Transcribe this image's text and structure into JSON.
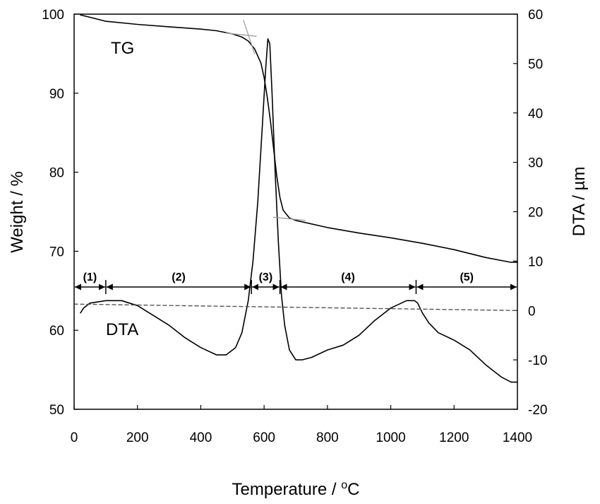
{
  "chart_data": {
    "type": "line",
    "xlabel": "Temperature",
    "xlabel_unit_prefix": " / ",
    "xlabel_unit_sup": "o",
    "xlabel_unit": "C",
    "ylabel_left": "Weight / %",
    "ylabel_right": "DTA / µm",
    "xlim": [
      0,
      1400
    ],
    "ylim_left": [
      50,
      100
    ],
    "ylim_right": [
      -20,
      60
    ],
    "x_ticks": [
      0,
      200,
      400,
      600,
      800,
      1000,
      1200,
      1400
    ],
    "y_left_ticks": [
      50,
      60,
      70,
      80,
      90,
      100
    ],
    "y_right_ticks": [
      -20,
      -10,
      0,
      10,
      20,
      30,
      40,
      50,
      60
    ],
    "grid": false,
    "annotations": {
      "tg_label": "TG",
      "dta_label": "DTA"
    },
    "regions": [
      {
        "label": "(1)",
        "start": 0,
        "end": 100
      },
      {
        "label": "(2)",
        "start": 100,
        "end": 560
      },
      {
        "label": "(3)",
        "start": 560,
        "end": 650
      },
      {
        "label": "(4)",
        "start": 650,
        "end": 1080
      },
      {
        "label": "(5)",
        "start": 1080,
        "end": 1400
      }
    ],
    "series": [
      {
        "name": "TG",
        "axis": "left",
        "x": [
          20,
          100,
          200,
          300,
          400,
          450,
          500,
          530,
          550,
          570,
          590,
          600,
          610,
          620,
          630,
          640,
          650,
          660,
          680,
          700,
          800,
          900,
          1000,
          1100,
          1200,
          1300,
          1380,
          1400
        ],
        "y": [
          99.9,
          99.1,
          98.7,
          98.4,
          98.1,
          97.9,
          97.5,
          97.1,
          96.6,
          95.6,
          93.8,
          92.0,
          89.5,
          86.5,
          83.0,
          79.5,
          76.8,
          75.2,
          74.2,
          73.9,
          73.0,
          72.3,
          71.7,
          71.0,
          70.2,
          69.2,
          68.6,
          68.6
        ]
      },
      {
        "name": "DTA",
        "axis": "right",
        "x": [
          20,
          30,
          50,
          100,
          150,
          200,
          250,
          300,
          350,
          400,
          450,
          480,
          510,
          530,
          550,
          565,
          580,
          595,
          605,
          612,
          618,
          625,
          635,
          645,
          655,
          665,
          680,
          700,
          720,
          750,
          800,
          850,
          900,
          950,
          1000,
          1050,
          1075,
          1085,
          1100,
          1120,
          1150,
          1200,
          1250,
          1300,
          1350,
          1380,
          1400
        ],
        "y": [
          -0.5,
          0.5,
          1.5,
          2.0,
          2.0,
          1.0,
          -1.0,
          -3.0,
          -5.5,
          -7.5,
          -9.0,
          -9.0,
          -7.5,
          -4.5,
          2.0,
          10.0,
          22.0,
          38.0,
          49.0,
          55.0,
          54.0,
          44.0,
          28.0,
          14.0,
          3.0,
          -3.0,
          -8.0,
          -10.0,
          -10.0,
          -9.5,
          -8.0,
          -7.0,
          -5.0,
          -2.0,
          0.5,
          2.0,
          2.0,
          1.5,
          -0.5,
          -2.5,
          -4.5,
          -6.0,
          -8.0,
          -11.0,
          -13.5,
          -14.5,
          -14.5
        ]
      },
      {
        "name": "DTA baseline",
        "axis": "right",
        "style": "dashed",
        "x": [
          0,
          1400
        ],
        "y": [
          1.3,
          0.0
        ]
      },
      {
        "name": "TG onset tangent (pre)",
        "axis": "left",
        "style": "guide",
        "x": [
          480,
          575
        ],
        "y": [
          97.6,
          97.2
        ]
      },
      {
        "name": "TG onset tangent (steep)",
        "axis": "left",
        "style": "guide",
        "x": [
          535,
          570
        ],
        "y": [
          99.2,
          95.0
        ]
      },
      {
        "name": "TG endset tangent",
        "axis": "left",
        "style": "guide",
        "x": [
          630,
          730
        ],
        "y": [
          74.3,
          73.9
        ]
      }
    ],
    "colors": {
      "line": "#000000",
      "baseline": "#555555",
      "guide": "#a0a0a0"
    }
  }
}
